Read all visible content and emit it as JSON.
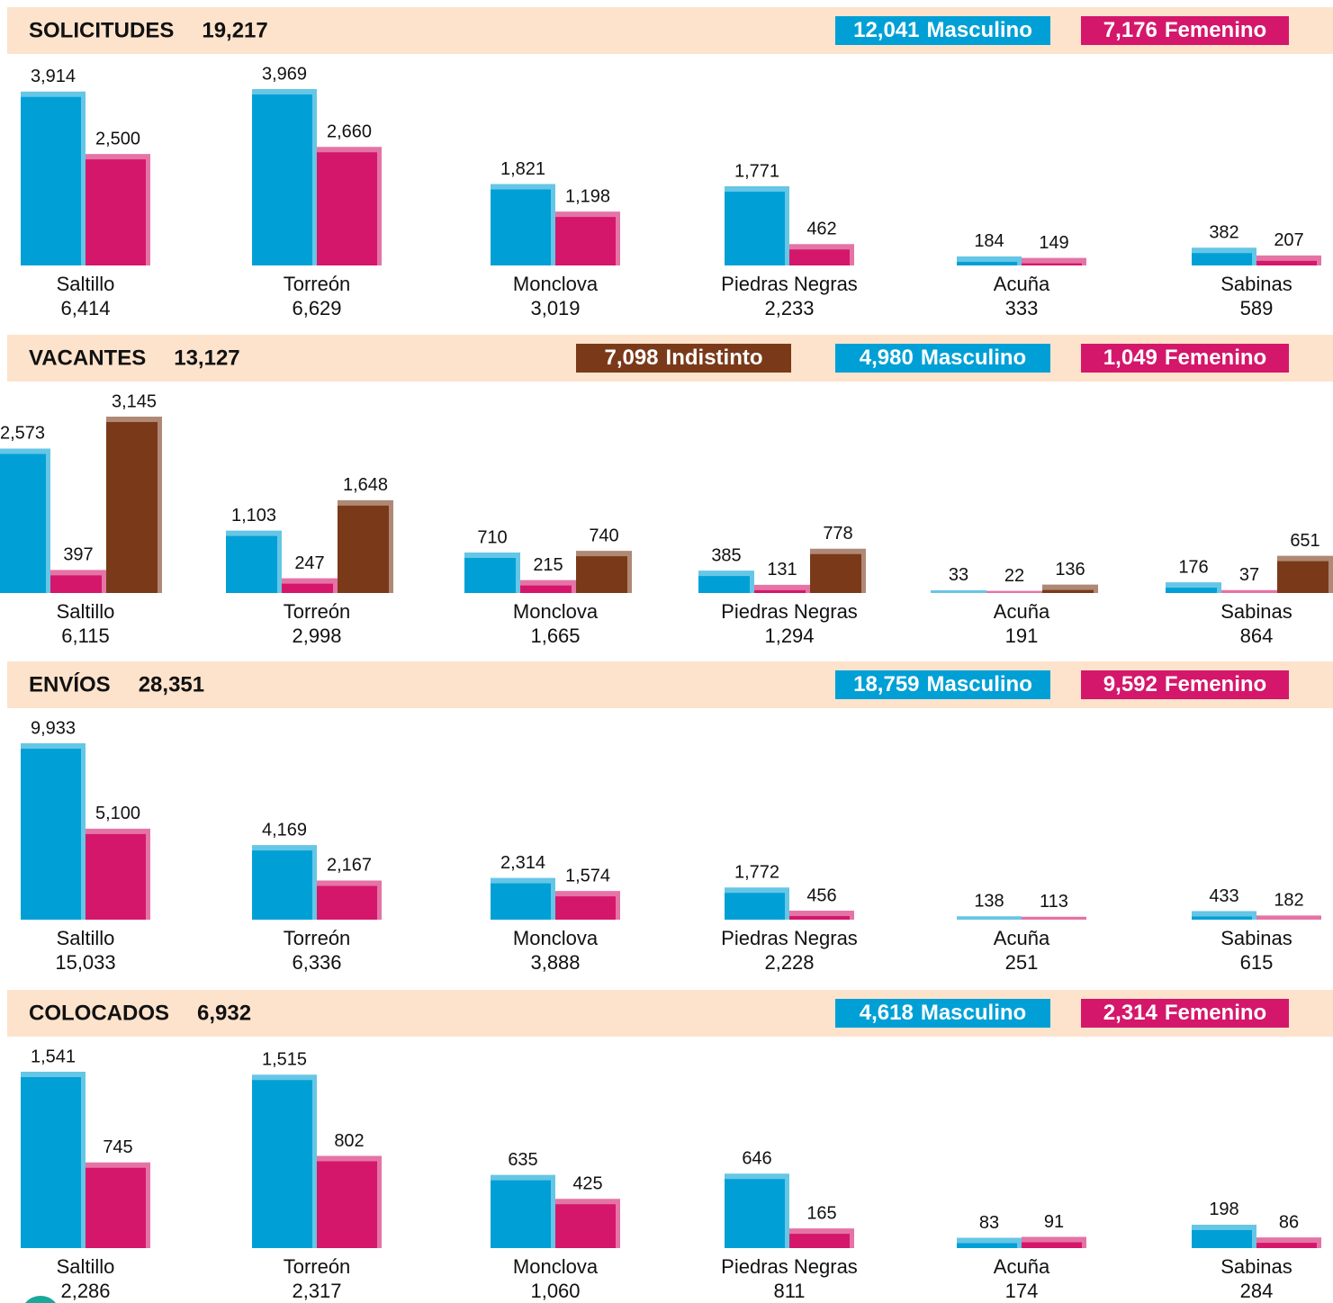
{
  "chart_data": [
    {
      "type": "bar",
      "title": "SOLICITUDES",
      "total": "19,217",
      "categories": [
        "Saltillo",
        "Torreón",
        "Monclova",
        "Piedras Negras",
        "Acuña",
        "Sabinas"
      ],
      "category_totals": [
        "6,414",
        "6,629",
        "3,019",
        "2,233",
        "333",
        "589"
      ],
      "series": [
        {
          "name": "Masculino",
          "total": "12,041",
          "color": "#00a0d6",
          "values": [
            3914,
            3969,
            1821,
            1771,
            184,
            382
          ],
          "value_labels": [
            "3,914",
            "3,969",
            "1,821",
            "1,771",
            "184",
            "382"
          ]
        },
        {
          "name": "Femenino",
          "total": "7,176",
          "color": "#d4176b",
          "values": [
            2500,
            2660,
            1198,
            462,
            149,
            207
          ],
          "value_labels": [
            "2,500",
            "2,660",
            "1,198",
            "462",
            "149",
            "207"
          ]
        }
      ]
    },
    {
      "type": "bar",
      "title": "VACANTES",
      "total": "13,127",
      "categories": [
        "Saltillo",
        "Torreón",
        "Monclova",
        "Piedras Negras",
        "Acuña",
        "Sabinas"
      ],
      "category_totals": [
        "6,115",
        "2,998",
        "1,665",
        "1,294",
        "191",
        "864"
      ],
      "series": [
        {
          "name": "Masculino",
          "total": "4,980",
          "color": "#00a0d6",
          "values": [
            2573,
            1103,
            710,
            385,
            33,
            176
          ],
          "value_labels": [
            "2,573",
            "1,103",
            "710",
            "385",
            "33",
            "176"
          ]
        },
        {
          "name": "Femenino",
          "total": "1,049",
          "color": "#d4176b",
          "values": [
            397,
            247,
            215,
            131,
            22,
            37
          ],
          "value_labels": [
            "397",
            "247",
            "215",
            "131",
            "22",
            "37"
          ]
        },
        {
          "name": "Indistinto",
          "total": "7,098",
          "color": "#7a3a1a",
          "values": [
            3145,
            1648,
            740,
            778,
            136,
            651
          ],
          "value_labels": [
            "3,145",
            "1,648",
            "740",
            "778",
            "136",
            "651"
          ]
        }
      ]
    },
    {
      "type": "bar",
      "title": "ENVÍOS",
      "total": "28,351",
      "categories": [
        "Saltillo",
        "Torreón",
        "Monclova",
        "Piedras Negras",
        "Acuña",
        "Sabinas"
      ],
      "category_totals": [
        "15,033",
        "6,336",
        "3,888",
        "2,228",
        "251",
        "615"
      ],
      "series": [
        {
          "name": "Masculino",
          "total": "18,759",
          "color": "#00a0d6",
          "values": [
            9933,
            4169,
            2314,
            1772,
            138,
            433
          ],
          "value_labels": [
            "9,933",
            "4,169",
            "2,314",
            "1,772",
            "138",
            "433"
          ]
        },
        {
          "name": "Femenino",
          "total": "9,592",
          "color": "#d4176b",
          "values": [
            5100,
            2167,
            1574,
            456,
            113,
            182
          ],
          "value_labels": [
            "5,100",
            "2,167",
            "1,574",
            "456",
            "113",
            "182"
          ]
        }
      ]
    },
    {
      "type": "bar",
      "title": "COLOCADOS",
      "total": "6,932",
      "categories": [
        "Saltillo",
        "Torreón",
        "Monclova",
        "Piedras Negras",
        "Acuña",
        "Sabinas"
      ],
      "category_totals": [
        "2,286",
        "2,317",
        "1,060",
        "811",
        "174",
        "284"
      ],
      "series": [
        {
          "name": "Masculino",
          "total": "4,618",
          "color": "#00a0d6",
          "values": [
            1541,
            1515,
            635,
            646,
            83,
            198
          ],
          "value_labels": [
            "1,541",
            "1,515",
            "635",
            "646",
            "83",
            "198"
          ]
        },
        {
          "name": "Femenino",
          "total": "2,314",
          "color": "#d4176b",
          "values": [
            745,
            802,
            425,
            165,
            91,
            86
          ],
          "value_labels": [
            "745",
            "802",
            "425",
            "165",
            "91",
            "86"
          ]
        }
      ]
    }
  ]
}
